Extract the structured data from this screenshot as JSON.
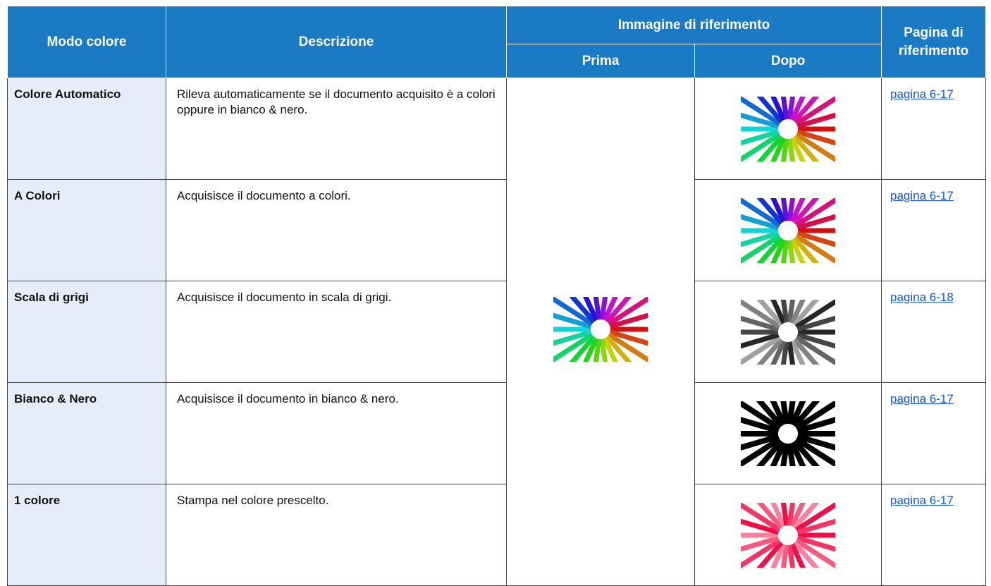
{
  "table": {
    "header": {
      "mode": "Modo colore",
      "description": "Descrizione",
      "reference_image": "Immagine di riferimento",
      "before": "Prima",
      "after": "Dopo",
      "page": "Pagina di riferimento"
    },
    "rows": [
      {
        "mode": "Colore Automatico",
        "description": "Rileva automaticamente se il documento acquisito è a colori oppure in bianco & nero.",
        "page": "pagina 6-17"
      },
      {
        "mode": "A Colori",
        "description": "Acquisisce il documento a colori.",
        "page": "pagina 6-17"
      },
      {
        "mode": "Scala di grigi",
        "description": "Acquisisce il documento in scala di grigi.",
        "page": "pagina 6-18"
      },
      {
        "mode": "Bianco & Nero",
        "description": "Acquisisce il documento in bianco & nero.",
        "page": "pagina 6-17"
      },
      {
        "mode": "1 colore",
        "description": "Stampa nel colore prescelto.",
        "page": "pagina 6-17"
      }
    ]
  }
}
